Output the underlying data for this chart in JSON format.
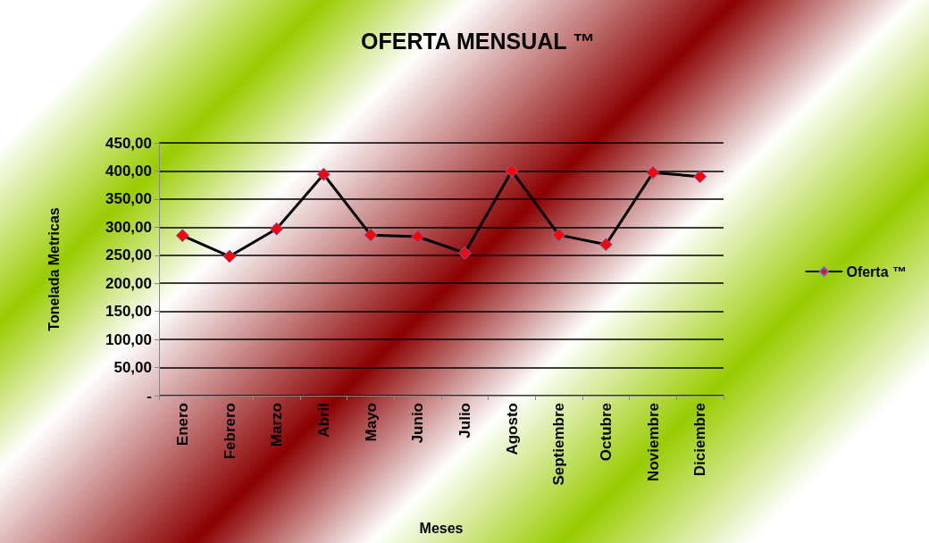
{
  "chart_data": {
    "type": "line",
    "title": "OFERTA MENSUAL ™",
    "xlabel": "Meses",
    "ylabel": "Tonelada Metricas",
    "categories": [
      "Enero",
      "Febrero",
      "Marzo",
      "Abril",
      "Mayo",
      "Junio",
      "Julio",
      "Agosto",
      "Septiembre",
      "Octubre",
      "Noviembre",
      "Diciembre"
    ],
    "series": [
      {
        "name": "Oferta ™",
        "color": "#000000",
        "values": [
          285,
          248,
          297,
          394,
          286,
          283,
          254,
          400,
          286,
          269,
          397,
          390
        ]
      }
    ],
    "ylim": [
      0,
      450
    ],
    "yticks": [
      {
        "value": 0,
        "label": "-"
      },
      {
        "value": 50,
        "label": "50,00"
      },
      {
        "value": 100,
        "label": "100,00"
      },
      {
        "value": 150,
        "label": "150,00"
      },
      {
        "value": 200,
        "label": "200,00"
      },
      {
        "value": 250,
        "label": "250,00"
      },
      {
        "value": 300,
        "label": "300,00"
      },
      {
        "value": 350,
        "label": "350,00"
      },
      {
        "value": 400,
        "label": "400,00"
      },
      {
        "value": 450,
        "label": "450,00"
      }
    ],
    "grid": "y",
    "legend": "right",
    "marker": "diamond",
    "line_style": "solid"
  }
}
